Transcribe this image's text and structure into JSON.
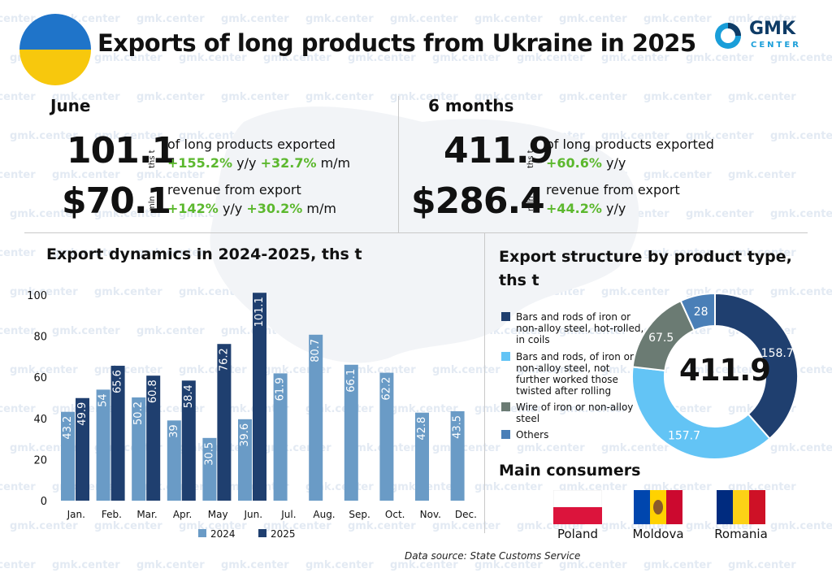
{
  "header": {
    "title": "Exports of long products from Ukraine in 2025",
    "logo_main": "GMK",
    "logo_sub": "CENTER",
    "watermark": "gmk.center"
  },
  "june": {
    "label": "June",
    "volume": "101.1",
    "volume_unit": "ths t",
    "volume_desc": "of long products exported",
    "volume_yy": "+155.2%",
    "volume_mm": "+32.7%",
    "revenue": "$70.1",
    "revenue_unit": "mln",
    "revenue_desc": "revenue from export",
    "revenue_yy": "+142%",
    "revenue_mm": "+30.2%",
    "yy_label": "y/y",
    "mm_label": "m/m"
  },
  "six_months": {
    "label": "6 months",
    "volume": "411.9",
    "volume_unit": "ths t",
    "volume_desc": "of long products exported",
    "volume_yy": "+60.6%",
    "revenue": "$286.4",
    "revenue_unit": "mln",
    "revenue_desc": "revenue from export",
    "revenue_yy": "+44.2%",
    "yy_label": "y/y"
  },
  "chart_data": [
    {
      "type": "bar",
      "title": "Export dynamics in 2024-2025, ths t",
      "categories": [
        "Jan.",
        "Feb.",
        "Mar.",
        "Apr.",
        "May",
        "Jun.",
        "Jul.",
        "Aug.",
        "Sep.",
        "Oct.",
        "Nov.",
        "Dec."
      ],
      "series": [
        {
          "name": "2024",
          "color": "#6a9bc6",
          "values": [
            43.2,
            54,
            50.2,
            39,
            30.5,
            39.6,
            61.9,
            80.7,
            66.1,
            62.2,
            42.8,
            43.5
          ]
        },
        {
          "name": "2025",
          "color": "#1f3f6f",
          "values": [
            49.9,
            65.6,
            60.8,
            58.4,
            76.2,
            101.1,
            null,
            null,
            null,
            null,
            null,
            null
          ]
        }
      ],
      "ylim": [
        0,
        100
      ],
      "yticks": [
        0,
        20,
        40,
        60,
        80,
        100
      ],
      "grid": false,
      "legend_position": "bottom"
    },
    {
      "type": "pie",
      "title": "Export structure by product type, ths t",
      "center_label": "411.9",
      "slices": [
        {
          "label": "Bars and rods of iron or non-alloy steel, hot-rolled, in coils",
          "value": 158.7,
          "color": "#1f3f6f"
        },
        {
          "label": "Bars and rods, of iron or non-alloy steel, not further worked those twisted after rolling",
          "value": 157.7,
          "color": "#63c4f5"
        },
        {
          "label": "Wire of iron or non-alloy steel",
          "value": 67.5,
          "color": "#6b7b73"
        },
        {
          "label": "Others",
          "value": 28,
          "color": "#4a7fb7"
        }
      ],
      "legend_position": "left"
    }
  ],
  "consumers": {
    "title": "Main consumers",
    "items": [
      "Poland",
      "Moldova",
      "Romania"
    ]
  },
  "source": "Data source: State Customs Service"
}
